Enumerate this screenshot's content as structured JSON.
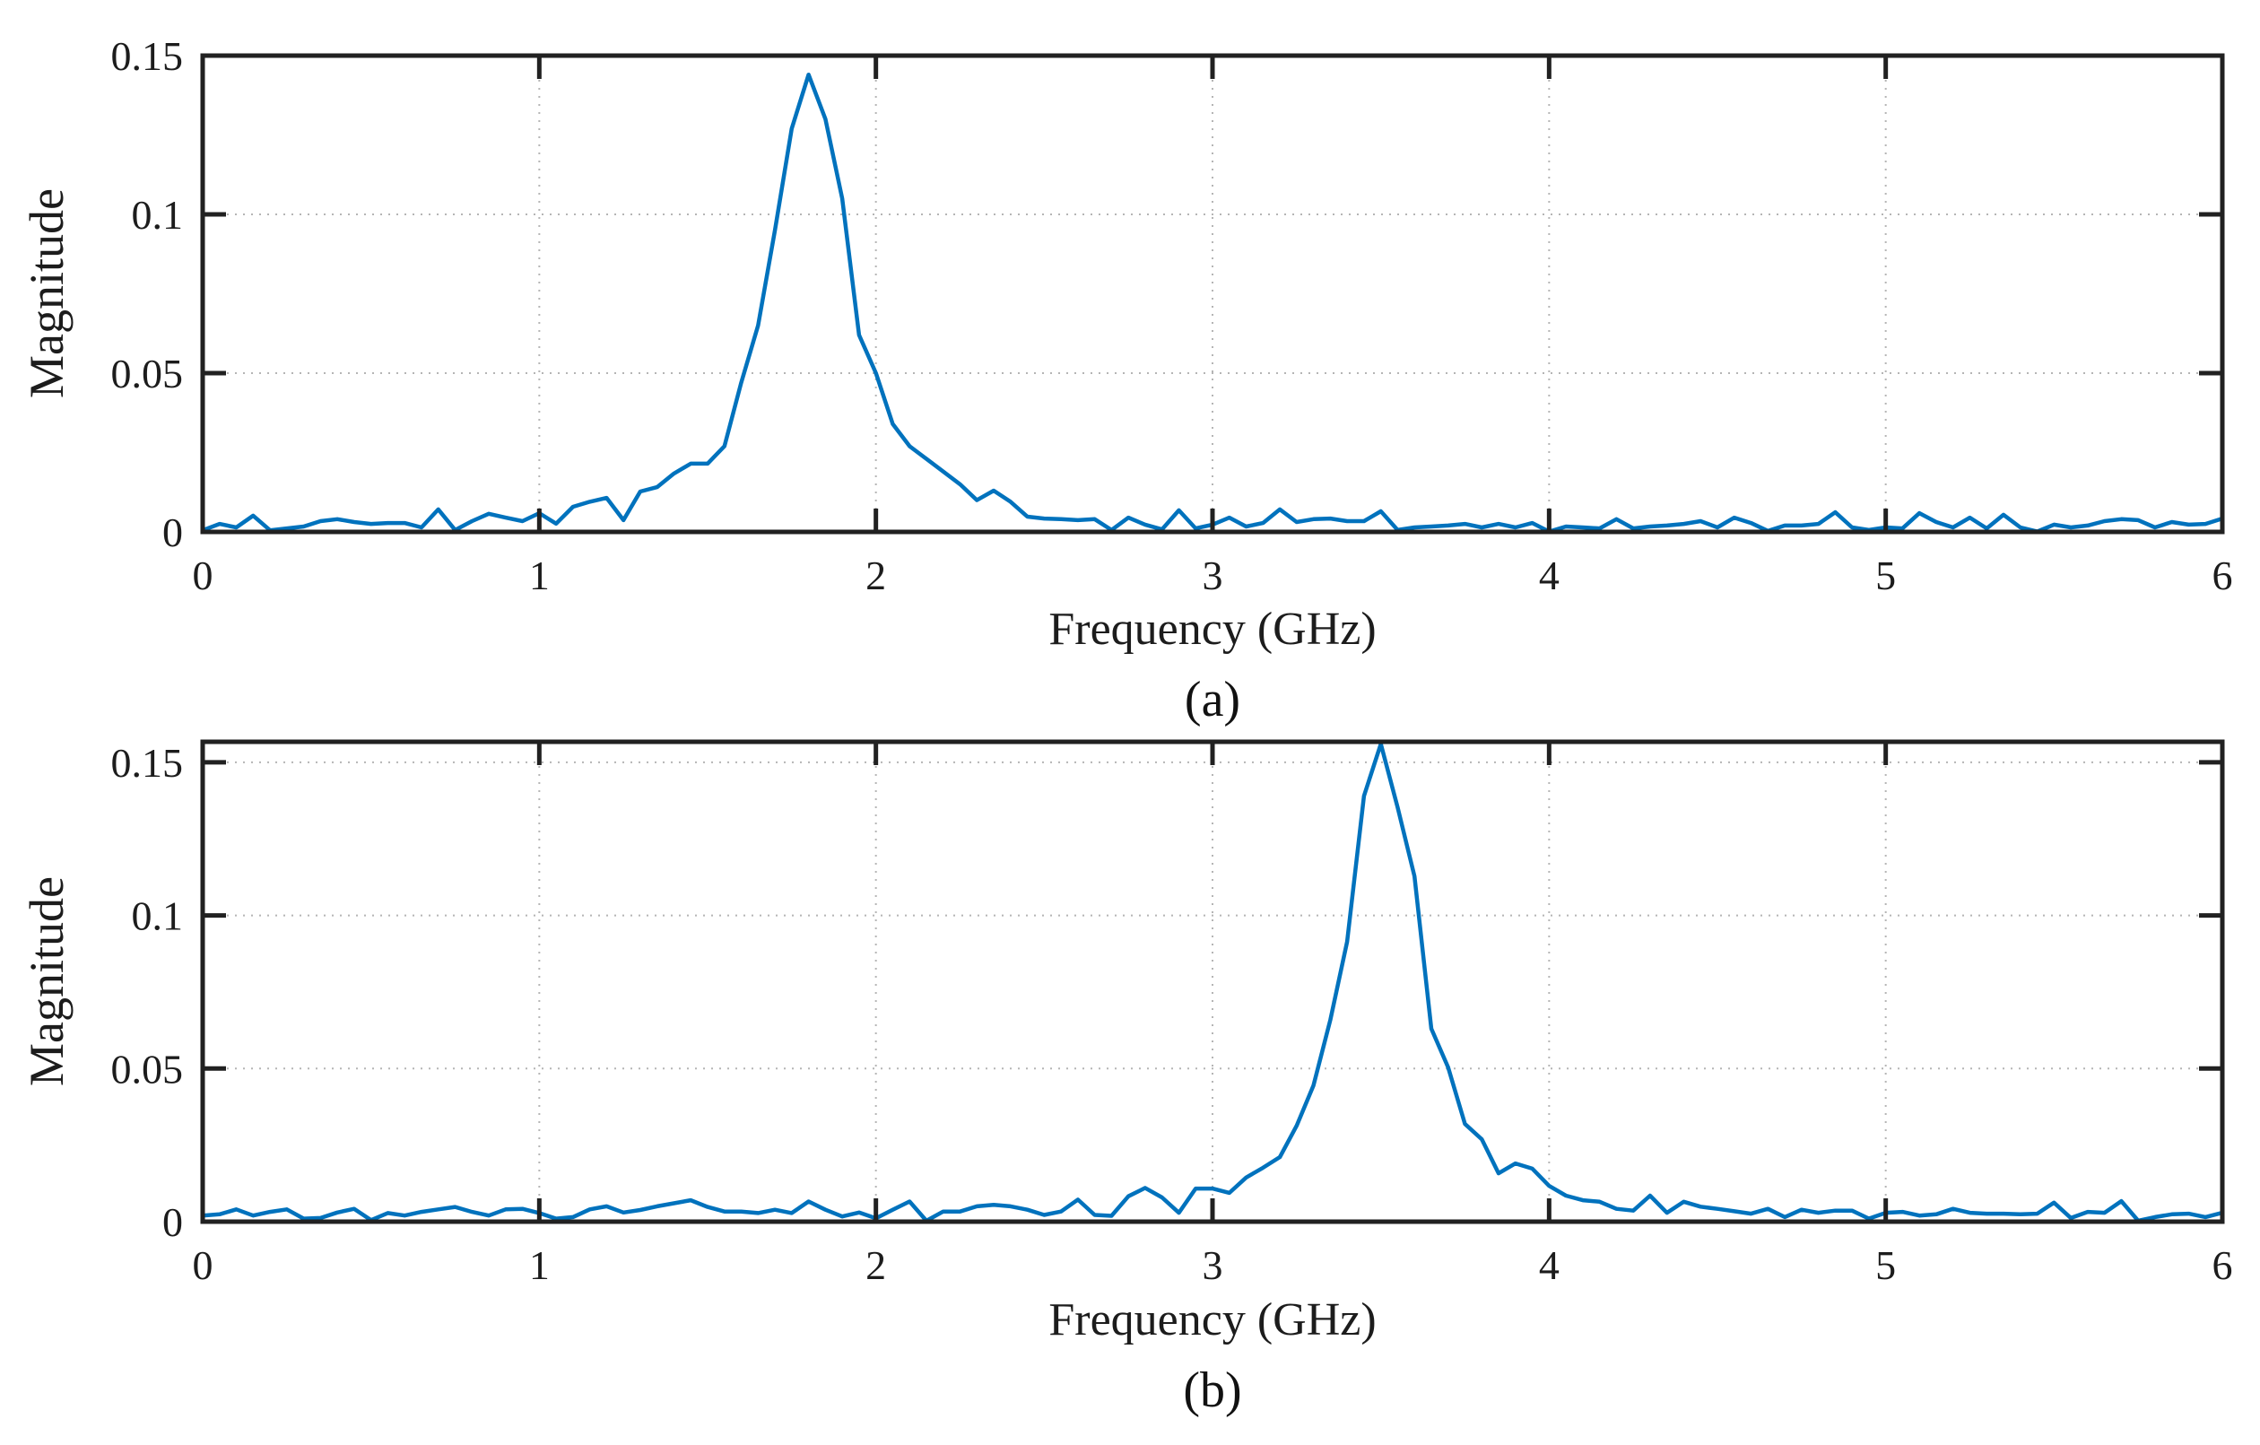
{
  "figure": {
    "background": "#ffffff",
    "frame_color": "#212121",
    "grid_color": "#b5b5b5",
    "text_color": "#1c1c1c"
  },
  "chart_data": [
    {
      "type": "line",
      "id": "a",
      "caption": "(a)",
      "xlabel": "Frequency (GHz)",
      "ylabel": "Magnitude",
      "xlim": [
        0,
        6
      ],
      "ylim": [
        0,
        0.15
      ],
      "xticks": [
        0,
        1,
        2,
        3,
        4,
        5,
        6
      ],
      "xtick_labels": [
        "0",
        "1",
        "2",
        "3",
        "4",
        "5",
        "6"
      ],
      "yticks": [
        0,
        0.05,
        0.1,
        0.15
      ],
      "ytick_labels": [
        "0",
        "0.05",
        "0.1",
        "0.15"
      ],
      "grid": "dotted",
      "line_color": "#0072BD",
      "x_ghz": {
        "start": 0,
        "step": 0.05,
        "count": 121
      },
      "peak": {
        "freq_ghz": 1.8,
        "magnitude": 0.144
      },
      "series": [
        {
          "name": "magnitude",
          "values": [
            0.0005,
            0.0025,
            0.0014,
            0.0051,
            0.0005,
            0.0011,
            0.0017,
            0.0034,
            0.004,
            0.0031,
            0.0025,
            0.0028,
            0.0028,
            0.0014,
            0.0071,
            0.0006,
            0.0034,
            0.0057,
            0.0045,
            0.0034,
            0.0059,
            0.0026,
            0.0079,
            0.0095,
            0.0107,
            0.0037,
            0.0127,
            0.0141,
            0.0184,
            0.0215,
            0.0215,
            0.027,
            0.047,
            0.065,
            0.095,
            0.127,
            0.144,
            0.13,
            0.105,
            0.062,
            0.05,
            0.034,
            0.027,
            0.023,
            0.019,
            0.015,
            0.01,
            0.013,
            0.0095,
            0.0048,
            0.0042,
            0.004,
            0.0037,
            0.004,
            0.0006,
            0.0045,
            0.0023,
            0.0008,
            0.0068,
            0.0011,
            0.0023,
            0.0045,
            0.0017,
            0.0028,
            0.0071,
            0.0031,
            0.004,
            0.0042,
            0.0034,
            0.0034,
            0.0065,
            0.0006,
            0.0014,
            0.0017,
            0.002,
            0.0025,
            0.0014,
            0.0025,
            0.0014,
            0.0028,
            0.0001,
            0.0017,
            0.0014,
            0.0011,
            0.004,
            0.0011,
            0.0017,
            0.002,
            0.0025,
            0.0034,
            0.0014,
            0.0045,
            0.0028,
            0.0003,
            0.002,
            0.002,
            0.0025,
            0.0062,
            0.0014,
            0.0006,
            0.0014,
            0.0011,
            0.0059,
            0.0031,
            0.0014,
            0.0045,
            0.0011,
            0.0054,
            0.0014,
            0.0001,
            0.0023,
            0.0014,
            0.002,
            0.0034,
            0.004,
            0.0037,
            0.0014,
            0.0031,
            0.0023,
            0.0025,
            0.0042
          ]
        }
      ]
    },
    {
      "type": "line",
      "id": "b",
      "caption": "(b)",
      "xlabel": "Frequency (GHz)",
      "ylabel": "Magnitude",
      "xlim": [
        0,
        6
      ],
      "ylim": [
        0,
        0.1567
      ],
      "xticks": [
        0,
        1,
        2,
        3,
        4,
        5,
        6
      ],
      "xtick_labels": [
        "0",
        "1",
        "2",
        "3",
        "4",
        "5",
        "6"
      ],
      "yticks": [
        0,
        0.05,
        0.1,
        0.15
      ],
      "ytick_labels": [
        "0",
        "0.05",
        "0.1",
        "0.15"
      ],
      "grid": "dotted",
      "line_color": "#0072BD",
      "x_ghz": {
        "start": 0,
        "step": 0.05,
        "count": 121
      },
      "peak": {
        "freq_ghz": 3.5,
        "magnitude": 0.156
      },
      "series": [
        {
          "name": "magnitude",
          "values": [
            0.002,
            0.0024,
            0.004,
            0.002,
            0.0032,
            0.004,
            0.001,
            0.0012,
            0.003,
            0.0042,
            0.0005,
            0.0028,
            0.002,
            0.0032,
            0.004,
            0.0048,
            0.0032,
            0.002,
            0.004,
            0.0042,
            0.0028,
            0.001,
            0.0015,
            0.004,
            0.005,
            0.003,
            0.0038,
            0.005,
            0.006,
            0.007,
            0.0048,
            0.0033,
            0.0033,
            0.0028,
            0.0039,
            0.0028,
            0.0066,
            0.0039,
            0.0017,
            0.003,
            0.0011,
            0.0039,
            0.0066,
            0.0003,
            0.0033,
            0.0033,
            0.005,
            0.0055,
            0.005,
            0.0039,
            0.0022,
            0.0033,
            0.0072,
            0.0022,
            0.0019,
            0.0083,
            0.011,
            0.0079,
            0.0029,
            0.0108,
            0.0108,
            0.0094,
            0.0144,
            0.0176,
            0.0211,
            0.0313,
            0.0445,
            0.0659,
            0.0914,
            0.139,
            0.156,
            0.1353,
            0.1128,
            0.063,
            0.0504,
            0.0319,
            0.0269,
            0.0158,
            0.019,
            0.0173,
            0.0117,
            0.0085,
            0.007,
            0.0065,
            0.0042,
            0.0036,
            0.0085,
            0.0029,
            0.0065,
            0.0049,
            0.0042,
            0.0034,
            0.0026,
            0.0042,
            0.0015,
            0.0039,
            0.0029,
            0.0036,
            0.0036,
            0.001,
            0.0029,
            0.0032,
            0.002,
            0.0024,
            0.0042,
            0.0029,
            0.0026,
            0.0026,
            0.0024,
            0.0026,
            0.0062,
            0.0012,
            0.0032,
            0.0029,
            0.0067,
            0.0003,
            0.0015,
            0.0024,
            0.0026,
            0.0015,
            0.0029
          ]
        }
      ]
    }
  ]
}
